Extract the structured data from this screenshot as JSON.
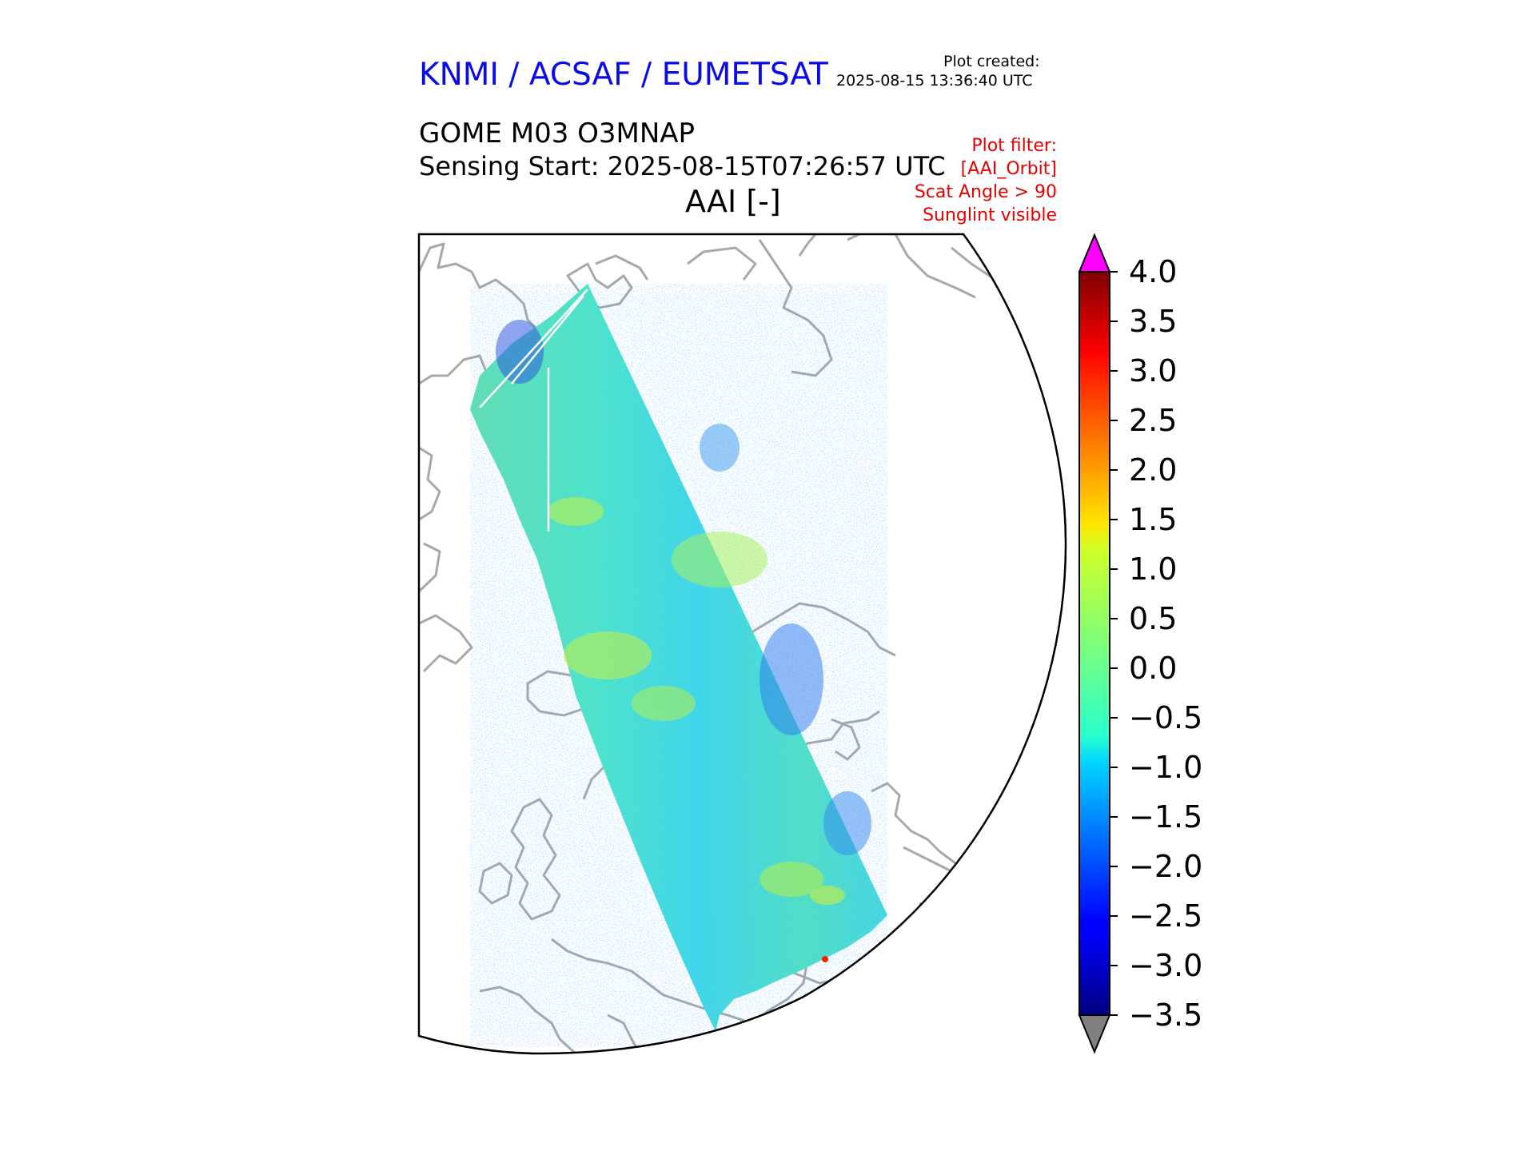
{
  "header": {
    "agency": "KNMI / ACSAF / EUMETSAT",
    "created_label": "Plot created:",
    "created_value": "2025-08-15 13:36:40 UTC",
    "product": "GOME M03 O3MNAP",
    "sensing_start": "Sensing Start: 2025-08-15T07:26:57 UTC",
    "variable_title": "AAI [-]"
  },
  "filter": {
    "label": "Plot filter:",
    "items": [
      "[AAI_Orbit]",
      "Scat Angle > 90",
      "Sunglint visible"
    ]
  },
  "colors": {
    "agency": "#0a0ae6",
    "filter": "#e60000",
    "coastline": "#a8a8a8",
    "over_extend": "#ff00ff",
    "under_extend": "#808080"
  },
  "chart_data": {
    "type": "heatmap",
    "title": "AAI [-]",
    "colormap": "jet",
    "colorbar": {
      "vmin": -3.5,
      "vmax": 4.0,
      "ticks": [
        "4.0",
        "3.5",
        "3.0",
        "2.5",
        "2.0",
        "1.5",
        "1.0",
        "0.5",
        "0.0",
        "−0.5",
        "−1.0",
        "−1.5",
        "−2.0",
        "−2.5",
        "−3.0",
        "−3.5"
      ],
      "extend": "both"
    },
    "swath_dominant_range": [
      -1.0,
      1.0
    ],
    "projection": "polar stereographic (Europe / Arctic)"
  }
}
